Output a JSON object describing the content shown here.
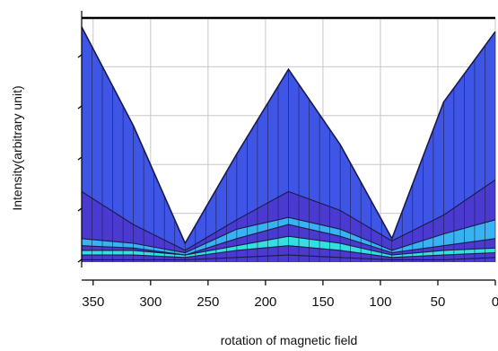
{
  "chart_data": {
    "type": "area",
    "title": "",
    "xlabel": "rotation of magnetic field",
    "ylabel": "Intensity(arbitrary unit)",
    "xlim": [
      360,
      0
    ],
    "ylim": [
      0,
      1
    ],
    "x_reversed": true,
    "grid": true,
    "y_tick_labels_shown": false,
    "x_ticks": [
      350,
      300,
      250,
      200,
      150,
      100,
      50,
      0
    ],
    "x_tick_labels": [
      "350",
      "300",
      "250",
      "200",
      "150",
      "100",
      "50",
      "0"
    ],
    "x": [
      360,
      315,
      270,
      225,
      180,
      135,
      90,
      45,
      0
    ],
    "series": [
      {
        "values": [
          1.0,
          0.58,
          0.08,
          0.46,
          0.82,
          0.5,
          0.1,
          0.68,
          0.98
        ]
      },
      {
        "values": [
          0.3,
          0.16,
          0.05,
          0.18,
          0.3,
          0.22,
          0.09,
          0.2,
          0.35
        ]
      },
      {
        "values": [
          0.1,
          0.08,
          0.04,
          0.14,
          0.19,
          0.14,
          0.05,
          0.12,
          0.18
        ]
      },
      {
        "values": [
          0.07,
          0.06,
          0.03,
          0.1,
          0.16,
          0.11,
          0.04,
          0.07,
          0.1
        ]
      },
      {
        "values": [
          0.05,
          0.05,
          0.03,
          0.07,
          0.11,
          0.08,
          0.03,
          0.05,
          0.06
        ]
      },
      {
        "values": [
          0.03,
          0.03,
          0.02,
          0.05,
          0.07,
          0.05,
          0.02,
          0.03,
          0.04
        ]
      },
      {
        "values": [
          0.01,
          0.01,
          0.01,
          0.02,
          0.03,
          0.02,
          0.01,
          0.01,
          0.02
        ]
      }
    ],
    "colors": {
      "top_fill": "#3f55e6",
      "band_fill": "#4a3ad0",
      "highlight_fill": "#38b2f0",
      "cyan_fill": "#32e0e0",
      "edge": "#1a1a4a",
      "grid": "#c8c8c8",
      "axis": "#000000"
    }
  }
}
